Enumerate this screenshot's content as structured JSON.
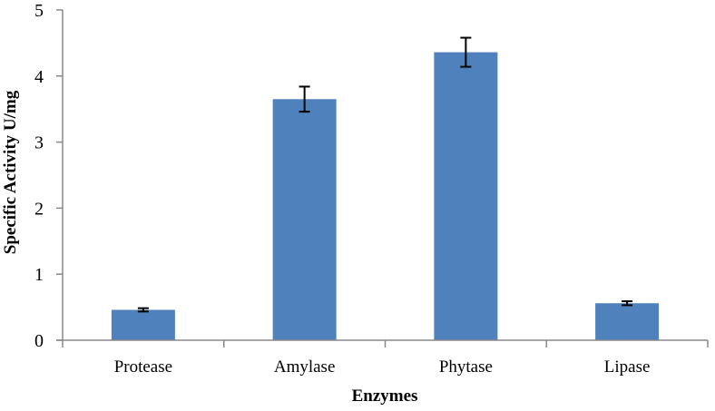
{
  "chart_data": {
    "type": "bar",
    "title": "",
    "xlabel": "Enzymes",
    "ylabel": "Specific Activity U/mg",
    "categories": [
      "Protease",
      "Amylase",
      "Phytase",
      "Lipase"
    ],
    "values": [
      0.46,
      3.65,
      4.36,
      0.56
    ],
    "errors": [
      0.025,
      0.19,
      0.22,
      0.03
    ],
    "ylim": [
      0,
      5
    ],
    "yticks": [
      0,
      1,
      2,
      3,
      4,
      5
    ],
    "grid": false,
    "legend": "none",
    "bar_color": "#4F81BD"
  }
}
